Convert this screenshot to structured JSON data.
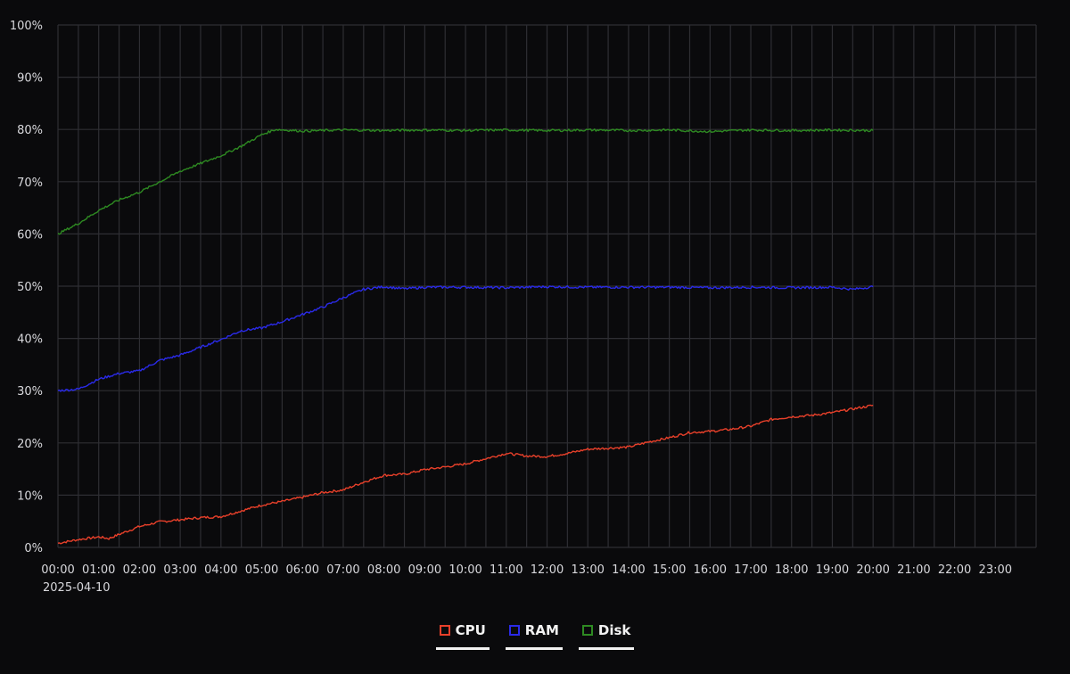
{
  "chart_data": {
    "type": "line",
    "title": "",
    "xlabel": "",
    "ylabel": "",
    "date_label": "2025-04-10",
    "x_ticks": [
      "00:00",
      "01:00",
      "02:00",
      "03:00",
      "04:00",
      "05:00",
      "06:00",
      "07:00",
      "08:00",
      "09:00",
      "10:00",
      "11:00",
      "12:00",
      "13:00",
      "14:00",
      "15:00",
      "16:00",
      "17:00",
      "18:00",
      "19:00",
      "20:00",
      "21:00",
      "22:00",
      "23:00"
    ],
    "y_ticks": [
      "0%",
      "10%",
      "20%",
      "30%",
      "40%",
      "50%",
      "60%",
      "70%",
      "80%",
      "90%",
      "100%"
    ],
    "xlim": [
      "00:00",
      "24:00"
    ],
    "ylim": [
      0,
      100
    ],
    "grid": true,
    "legend_position": "bottom-center",
    "series": [
      {
        "name": "CPU",
        "color": "#e8402a",
        "x": [
          "00:00",
          "00:30",
          "01:00",
          "01:15",
          "01:30",
          "02:00",
          "02:30",
          "03:00",
          "03:30",
          "04:00",
          "04:30",
          "05:00",
          "05:30",
          "06:00",
          "06:30",
          "07:00",
          "07:30",
          "08:00",
          "08:30",
          "09:00",
          "09:30",
          "10:00",
          "10:30",
          "11:00",
          "11:30",
          "12:00",
          "12:30",
          "13:00",
          "13:30",
          "14:00",
          "14:30",
          "15:00",
          "15:30",
          "16:00",
          "16:30",
          "17:00",
          "17:30",
          "18:00",
          "18:30",
          "19:00",
          "19:30",
          "20:00"
        ],
        "values": [
          0.8,
          1.5,
          2.0,
          1.7,
          2.5,
          4.0,
          4.9,
          5.3,
          5.7,
          5.9,
          7.0,
          8.1,
          8.8,
          9.6,
          10.5,
          11.0,
          12.5,
          13.8,
          14.0,
          14.9,
          15.4,
          16.0,
          17.0,
          18.0,
          17.5,
          17.4,
          18.0,
          18.8,
          19.0,
          19.2,
          20.2,
          21.0,
          22.0,
          22.2,
          22.6,
          23.2,
          24.5,
          25.0,
          25.3,
          25.8,
          26.5,
          27.2
        ]
      },
      {
        "name": "RAM",
        "color": "#2a2ae8",
        "x": [
          "00:00",
          "00:30",
          "01:00",
          "01:30",
          "02:00",
          "02:30",
          "03:00",
          "03:30",
          "04:00",
          "04:30",
          "05:00",
          "05:30",
          "06:00",
          "06:30",
          "07:00",
          "07:30",
          "08:00",
          "08:30",
          "09:00",
          "10:00",
          "11:00",
          "12:00",
          "13:00",
          "14:00",
          "15:00",
          "16:00",
          "17:00",
          "18:00",
          "19:00",
          "19:30",
          "20:00"
        ],
        "values": [
          30.0,
          30.3,
          32.2,
          33.3,
          33.8,
          35.8,
          36.8,
          38.3,
          39.8,
          41.5,
          42.0,
          43.2,
          44.6,
          46.0,
          47.8,
          49.4,
          49.9,
          49.5,
          49.8,
          49.8,
          49.7,
          49.9,
          49.8,
          49.8,
          49.8,
          49.7,
          49.8,
          49.7,
          49.8,
          49.4,
          49.9
        ]
      },
      {
        "name": "Disk",
        "color": "#2e8a22",
        "x": [
          "00:00",
          "00:30",
          "01:00",
          "01:30",
          "02:00",
          "02:30",
          "03:00",
          "03:30",
          "04:00",
          "04:30",
          "05:00",
          "05:20",
          "06:00",
          "07:00",
          "08:00",
          "09:00",
          "10:00",
          "11:00",
          "12:00",
          "13:00",
          "14:00",
          "15:00",
          "16:00",
          "17:00",
          "18:00",
          "19:00",
          "20:00"
        ],
        "values": [
          60.0,
          62.0,
          64.5,
          66.5,
          68.0,
          70.0,
          72.0,
          73.5,
          75.0,
          76.8,
          79.0,
          80.0,
          79.7,
          79.9,
          79.8,
          79.9,
          79.8,
          79.9,
          79.8,
          79.9,
          79.8,
          79.9,
          79.6,
          79.9,
          79.8,
          79.9,
          79.8
        ]
      }
    ]
  }
}
